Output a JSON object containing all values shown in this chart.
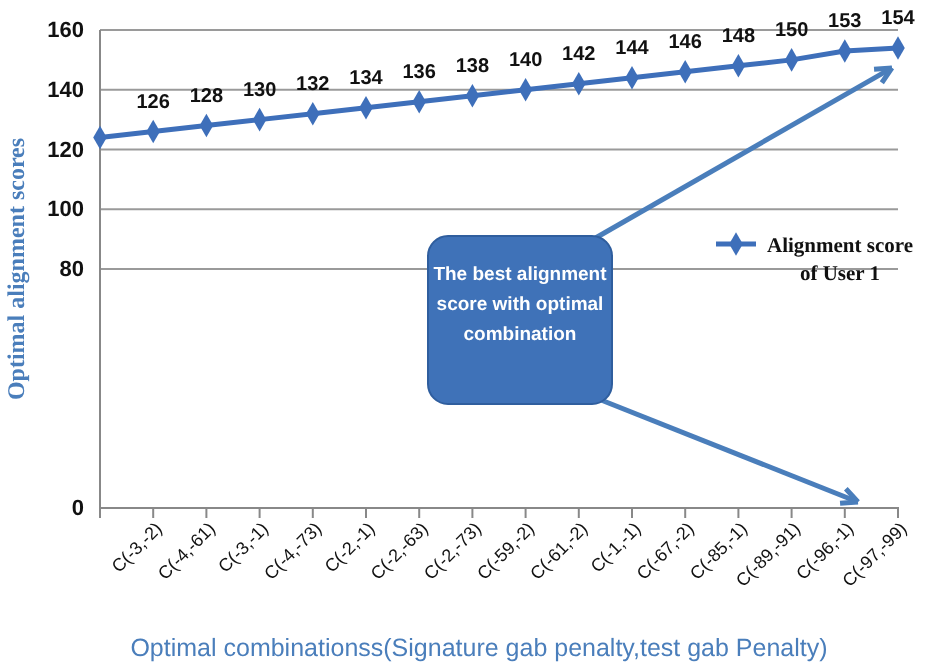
{
  "chart_data": {
    "type": "line",
    "categories": [
      null,
      "C(-3,-2)",
      "C(-4,-61)",
      "C(-3,-1)",
      "C(-4,-73)",
      "C(-2,-1)",
      "C(-2,-63)",
      "C(-2,-73)",
      "C(-59,-2)",
      "C(-61,-2)",
      "C(-1,-1)",
      "C(-67,-2)",
      "C(-85,-1)",
      "C(-89,-91)",
      "C(-96,-1)",
      "C(-97,-99)"
    ],
    "series": [
      {
        "name": "Alignment score of User 1",
        "color": "#3e6fba",
        "values": [
          124,
          126,
          128,
          130,
          132,
          134,
          136,
          138,
          140,
          142,
          144,
          146,
          148,
          150,
          153,
          154
        ],
        "value_labels": [
          null,
          "126",
          "128",
          "130",
          "132",
          "134",
          "136",
          "138",
          "140",
          "142",
          "144",
          "146",
          "148",
          "150",
          "153",
          "154"
        ]
      }
    ],
    "xlabel": "Optimal combinationss(Signature gab penalty,test gab Penalty)",
    "ylabel": "Optimal alignment scores",
    "ylim": [
      0,
      160
    ],
    "yticks": [
      0,
      80,
      100,
      120,
      140,
      160
    ],
    "grid": "y",
    "legend": "right",
    "marker": "diamond",
    "line_style": "solid",
    "annotations": [
      "The best alignment score with optimal combination"
    ]
  }
}
